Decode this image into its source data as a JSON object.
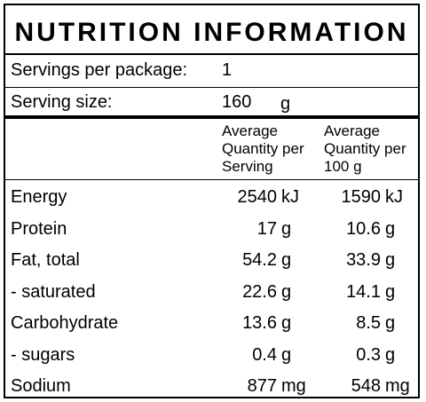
{
  "title": "NUTRITION INFORMATION",
  "servings": {
    "label": "Servings per package:",
    "value": "1"
  },
  "serving_size": {
    "label": "Serving size:",
    "value": "160",
    "unit": "g"
  },
  "columns": {
    "per_serving": [
      "Average",
      "Quantity per",
      "Serving"
    ],
    "per_100g": [
      "Average",
      "Quantity per",
      "100 g"
    ]
  },
  "rows": [
    {
      "name": "Energy",
      "serving": "2540",
      "serving_unit": "kJ",
      "per100": "1590",
      "per100_unit": "kJ"
    },
    {
      "name": "Protein",
      "serving": "17",
      "serving_unit": "g",
      "per100": "10.6",
      "per100_unit": "g"
    },
    {
      "name": "Fat, total",
      "serving": "54.2",
      "serving_unit": "g",
      "per100": "33.9",
      "per100_unit": "g"
    },
    {
      "name": "- saturated",
      "serving": "22.6",
      "serving_unit": "g",
      "per100": "14.1",
      "per100_unit": "g"
    },
    {
      "name": "Carbohydrate",
      "serving": "13.6",
      "serving_unit": "g",
      "per100": "8.5",
      "per100_unit": "g"
    },
    {
      "name": "- sugars",
      "serving": "0.4",
      "serving_unit": "g",
      "per100": "0.3",
      "per100_unit": "g"
    },
    {
      "name": "Sodium",
      "serving": "877",
      "serving_unit": "mg",
      "per100": "548",
      "per100_unit": "mg"
    }
  ]
}
